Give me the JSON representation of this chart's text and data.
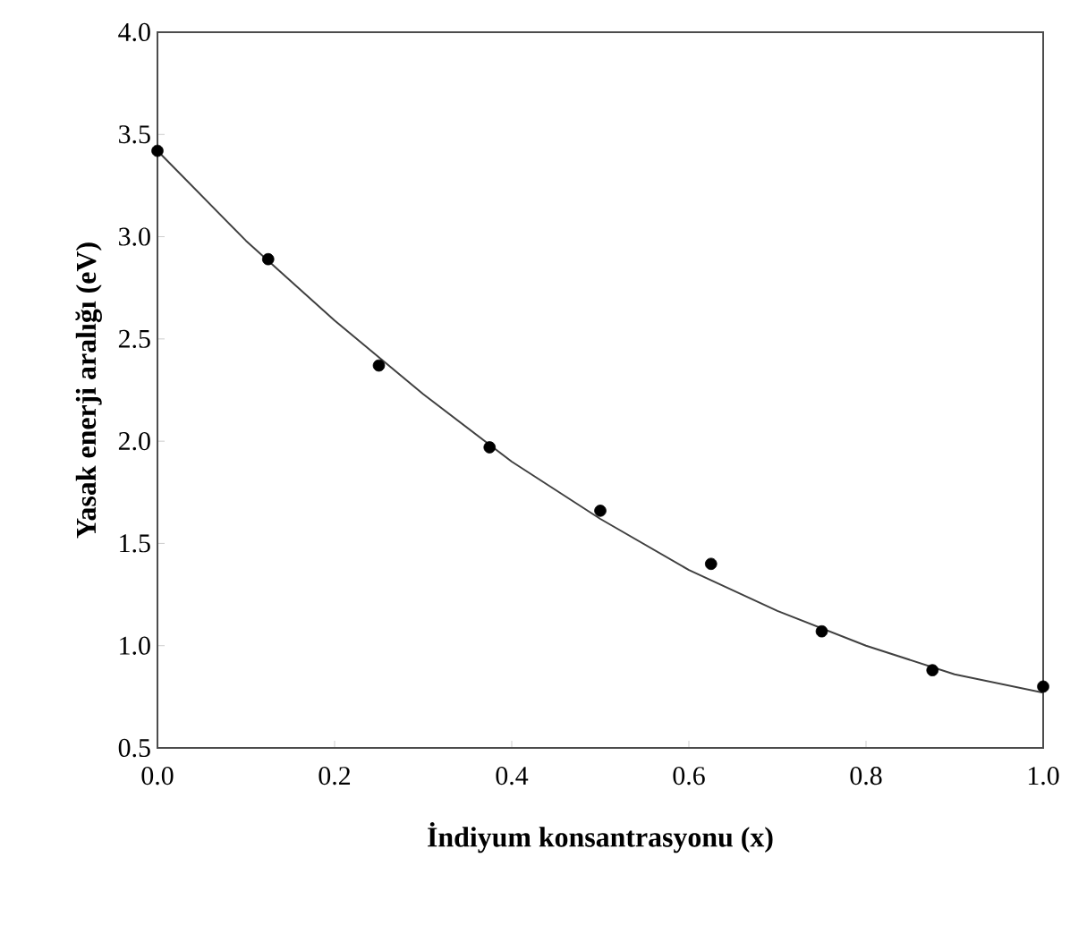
{
  "chart_data": {
    "type": "scatter",
    "xlabel": "İndiyum konsantrasyonu (x)",
    "ylabel": "Yasak enerji aralığı (eV)",
    "xlim": [
      0,
      1
    ],
    "ylim": [
      0.5,
      4
    ],
    "xticks": [
      {
        "value": 0,
        "label": "0.0"
      },
      0.2,
      0.4,
      0.6,
      0.8,
      {
        "value": 1,
        "label": "1.0"
      }
    ],
    "yticks": [
      0.5,
      {
        "value": 1,
        "label": "1.0"
      },
      1.5,
      {
        "value": 2,
        "label": "2.0"
      },
      2.5,
      {
        "value": 3,
        "label": "3.0"
      },
      3.5,
      {
        "value": 4,
        "label": "4.0"
      }
    ],
    "grid": false,
    "series": [
      {
        "color": "#000000",
        "marker": "circle",
        "x": [
          0,
          0.125,
          0.25,
          0.375,
          0.5,
          0.625,
          0.75,
          0.875,
          1
        ],
        "values": [
          3.42,
          2.89,
          2.37,
          1.97,
          1.66,
          1.4,
          1.07,
          0.88,
          0.8
        ]
      },
      {
        "type": "line",
        "color": "#404040",
        "marker": "none",
        "line_style": "solid",
        "x": [
          0,
          0.1,
          0.2,
          0.3,
          0.4,
          0.5,
          0.6,
          0.7,
          0.8,
          0.9,
          1
        ],
        "values": [
          3.42,
          2.98,
          2.59,
          2.23,
          1.9,
          1.62,
          1.37,
          1.17,
          1.0,
          0.86,
          0.77
        ]
      }
    ]
  }
}
